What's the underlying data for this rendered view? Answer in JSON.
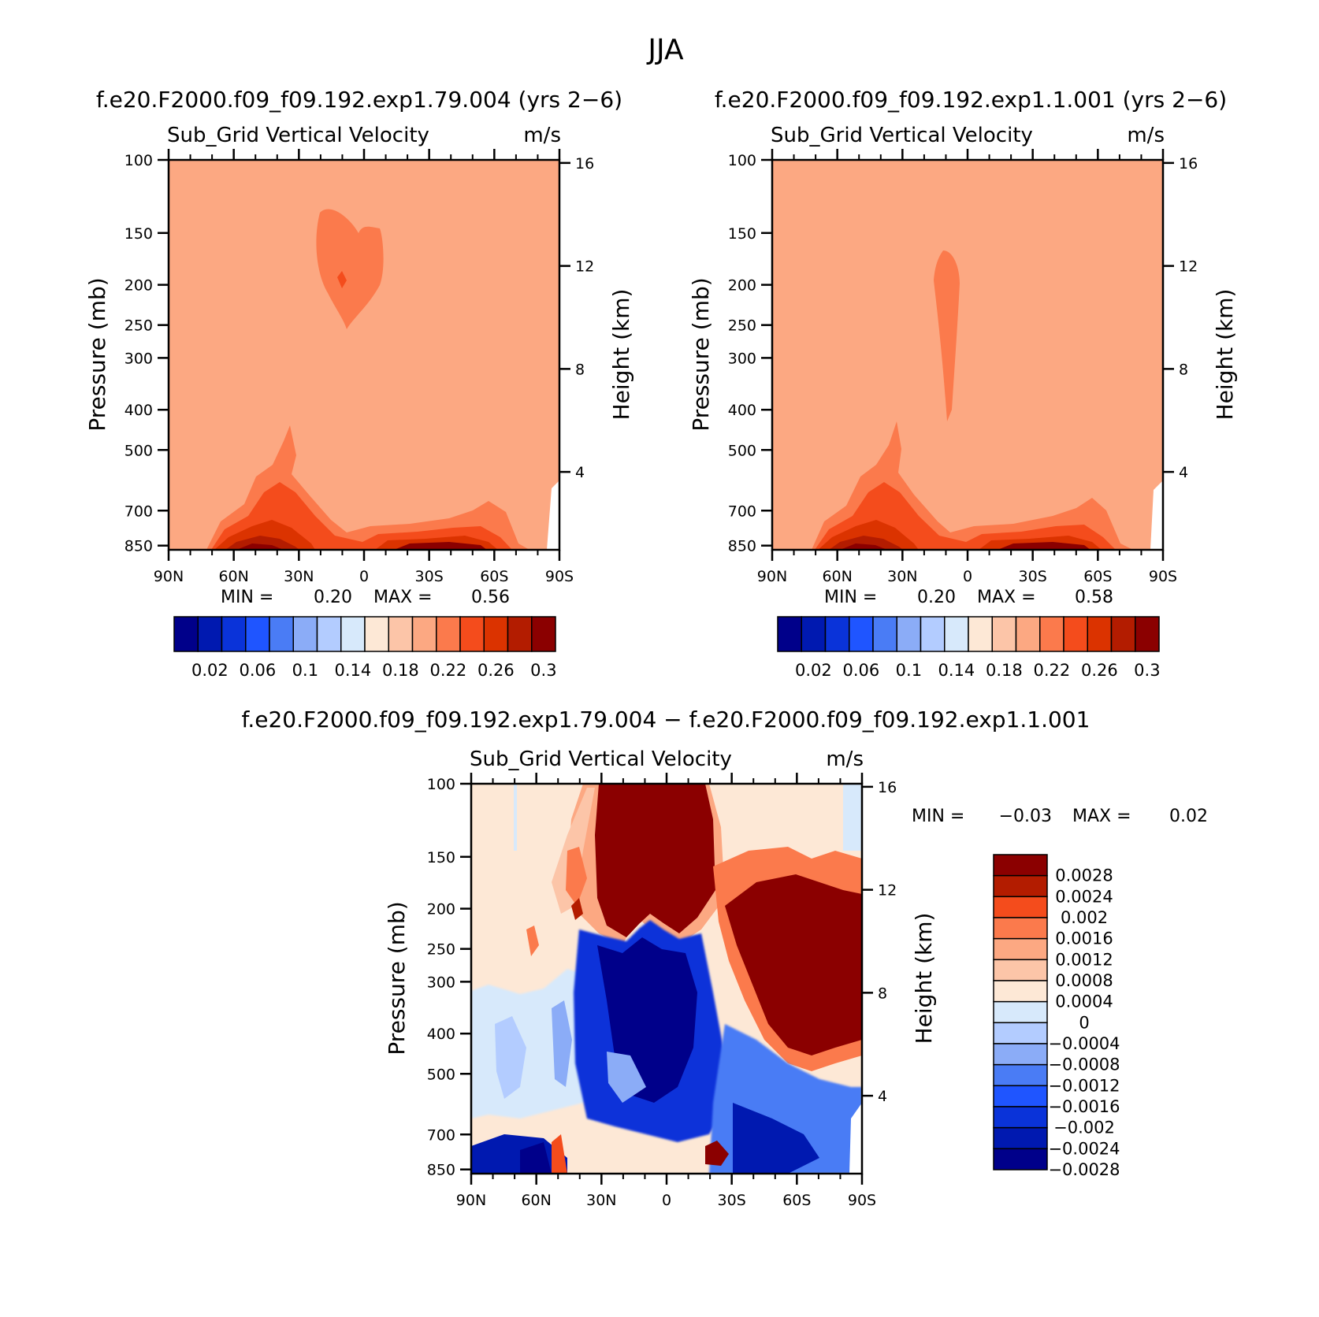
{
  "figure": {
    "title": "JJA",
    "run_a_label": "f.e20.F2000.f09_f09.192.exp1.79.004 (yrs 2−6)",
    "run_b_label": "f.e20.F2000.f09_f09.192.exp1.1.001 (yrs 2−6)",
    "diff_label": "f.e20.F2000.f09_f09.192.exp1.79.004 − f.e20.F2000.f09_f09.192.exp1.1.001"
  },
  "chart_data": [
    {
      "type": "heatmap",
      "panel": "run_a",
      "variable": "Sub_Grid Vertical Velocity",
      "units": "m/s",
      "xlabel": "",
      "ylabel": "Pressure (mb)",
      "y2label": "Height (km)",
      "x_ticks": [
        "90N",
        "60N",
        "30N",
        "0",
        "30S",
        "60S",
        "90S"
      ],
      "y_ticks": [
        100,
        150,
        200,
        250,
        300,
        400,
        500,
        700,
        850
      ],
      "y2_ticks": [
        4,
        8,
        12,
        16
      ],
      "ylim": [
        870,
        100
      ],
      "y_scale": "log",
      "min_label": "MIN =",
      "min_value": "0.20",
      "max_label": "MAX =",
      "max_value": "0.56",
      "background_level": 0.2,
      "features": [
        {
          "desc": "upper-level maximum near 10N at 150-250 mb",
          "value": 0.22
        },
        {
          "desc": "low-level maximum 60N-20N below 500 mb",
          "value": 0.3
        },
        {
          "desc": "low-level maximum 10S-70S below 700 mb",
          "value": 0.3
        }
      ],
      "colorbar": {
        "labels": [
          "0.02",
          "0.06",
          "0.1",
          "0.14",
          "0.18",
          "0.22",
          "0.26",
          "0.3"
        ],
        "colors": [
          "#00008a",
          "#0019b0",
          "#0a33d9",
          "#1f55ff",
          "#4a7cf5",
          "#8bacf7",
          "#b3ccff",
          "#d7e9fb",
          "#fde8d6",
          "#fcc5a8",
          "#fca882",
          "#fb7a4c",
          "#f44c1c",
          "#db3300",
          "#b31c00",
          "#8b0000"
        ]
      }
    },
    {
      "type": "heatmap",
      "panel": "run_b",
      "variable": "Sub_Grid Vertical Velocity",
      "units": "m/s",
      "xlabel": "",
      "ylabel": "Pressure (mb)",
      "y2label": "Height (km)",
      "x_ticks": [
        "90N",
        "60N",
        "30N",
        "0",
        "30S",
        "60S",
        "90S"
      ],
      "y_ticks": [
        100,
        150,
        200,
        250,
        300,
        400,
        500,
        700,
        850
      ],
      "y2_ticks": [
        4,
        8,
        12,
        16
      ],
      "ylim": [
        870,
        100
      ],
      "y_scale": "log",
      "min_label": "MIN =",
      "min_value": "0.20",
      "max_label": "MAX =",
      "max_value": "0.58",
      "background_level": 0.2,
      "features": [
        {
          "desc": "narrow upper-level plume near 8N from 170 to 450 mb",
          "value": 0.22
        },
        {
          "desc": "low-level maximum 60N-20N below 500 mb",
          "value": 0.3
        },
        {
          "desc": "low-level maximum 10S-70S below 700 mb",
          "value": 0.3
        }
      ],
      "colorbar": {
        "labels": [
          "0.02",
          "0.06",
          "0.1",
          "0.14",
          "0.18",
          "0.22",
          "0.26",
          "0.3"
        ],
        "colors": [
          "#00008a",
          "#0019b0",
          "#0a33d9",
          "#1f55ff",
          "#4a7cf5",
          "#8bacf7",
          "#b3ccff",
          "#d7e9fb",
          "#fde8d6",
          "#fcc5a8",
          "#fca882",
          "#fb7a4c",
          "#f44c1c",
          "#db3300",
          "#b31c00",
          "#8b0000"
        ]
      }
    },
    {
      "type": "heatmap",
      "panel": "difference",
      "variable": "Sub_Grid Vertical Velocity",
      "units": "m/s",
      "xlabel": "",
      "ylabel": "Pressure (mb)",
      "y2label": "Height (km)",
      "x_ticks": [
        "90N",
        "60N",
        "30N",
        "0",
        "30S",
        "60S",
        "90S"
      ],
      "y_ticks": [
        100,
        150,
        200,
        250,
        300,
        400,
        500,
        700,
        850
      ],
      "y2_ticks": [
        4,
        8,
        12,
        16
      ],
      "ylim": [
        870,
        100
      ],
      "y_scale": "log",
      "min_label": "MIN =",
      "min_value": "−0.03",
      "max_label": "MAX =",
      "max_value": "0.02",
      "features": [
        {
          "desc": "strong positive aloft 30N-20S above 230 mb",
          "value": 0.003
        },
        {
          "desc": "strong positive 30S-90S from 230 to 500 mb",
          "value": 0.003
        },
        {
          "desc": "strong negative 30N-20S from 250 to 600 mb",
          "value": -0.003
        },
        {
          "desc": "negative near surface across tropics and subtropics",
          "value": -0.002
        },
        {
          "desc": "weak negative 90N-50N from 300 to 700 mb",
          "value": -0.0004
        }
      ],
      "colorbar": {
        "labels": [
          "0.0028",
          "0.0024",
          "0.002",
          "0.0016",
          "0.0012",
          "0.0008",
          "0.0004",
          "0",
          "−0.0004",
          "−0.0008",
          "−0.0012",
          "−0.0016",
          "−0.002",
          "−0.0024",
          "−0.0028"
        ],
        "colors": [
          "#8b0000",
          "#b31c00",
          "#f44c1c",
          "#fb7a4c",
          "#fca882",
          "#fcc5a8",
          "#fde8d6",
          "#d7e9fb",
          "#b3ccff",
          "#8bacf7",
          "#4a7cf5",
          "#1f55ff",
          "#0a33d9",
          "#0019b0",
          "#00008a"
        ]
      }
    }
  ]
}
